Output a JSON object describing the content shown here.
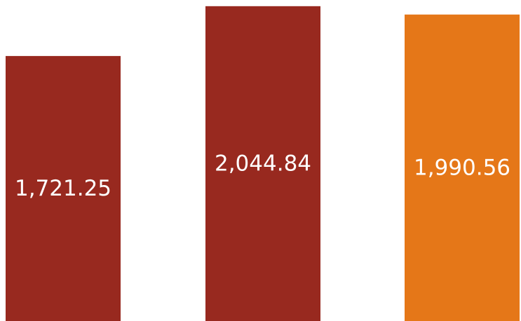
{
  "chart_data": {
    "type": "bar",
    "categories": [
      "",
      "",
      ""
    ],
    "values": [
      1721.25,
      2044.84,
      1990.56
    ],
    "data_labels": [
      "1,721.25",
      "2,044.84",
      "1,990.56"
    ],
    "bar_colors": [
      "#98291f",
      "#98291f",
      "#e57718"
    ],
    "ylim": [
      0,
      2085
    ],
    "grid": false,
    "legend": "none"
  }
}
